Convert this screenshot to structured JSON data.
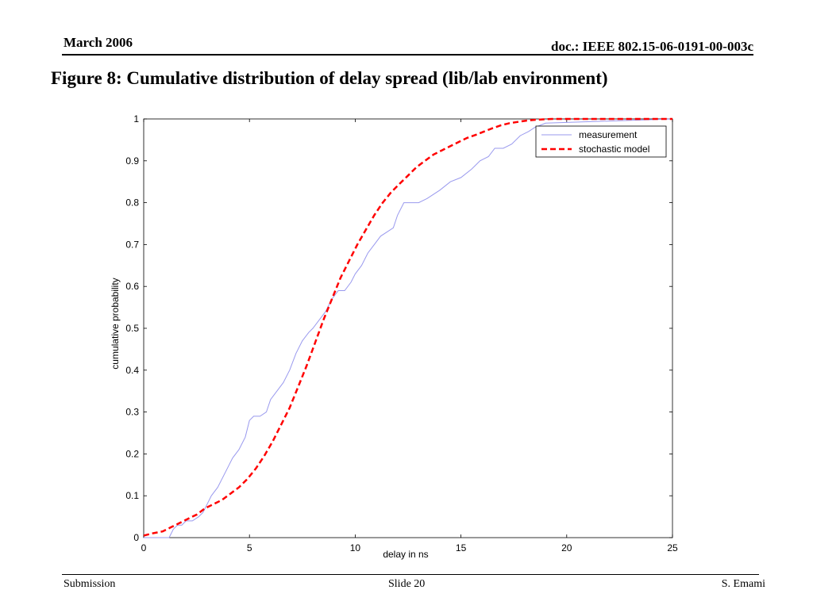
{
  "header": {
    "date": "March 2006",
    "doc_id": "doc.: IEEE 802.15-06-0191-00-003c"
  },
  "slide": {
    "title": "Figure 8: Cumulative distribution of delay spread (lib/lab environment)"
  },
  "footer": {
    "left": "Submission",
    "center": "Slide 20",
    "right": "S. Emami"
  },
  "chart_data": {
    "type": "line",
    "title": "",
    "xlabel": "delay in ns",
    "ylabel": "cumulative probability",
    "xlim": [
      0,
      25
    ],
    "ylim": [
      0,
      1
    ],
    "x_ticks": [
      0,
      5,
      10,
      15,
      20,
      25
    ],
    "y_ticks": [
      0,
      0.1,
      0.2,
      0.3,
      0.4,
      0.5,
      0.6,
      0.7,
      0.8,
      0.9,
      1
    ],
    "grid": false,
    "legend_position": "top-right",
    "series": [
      {
        "name": "measurement",
        "color": "#9999ee",
        "style": "solid",
        "x": [
          0,
          1.2,
          1.4,
          1.6,
          1.8,
          2.0,
          2.3,
          2.6,
          2.8,
          3.0,
          3.2,
          3.5,
          3.8,
          4.0,
          4.2,
          4.5,
          4.8,
          5.0,
          5.2,
          5.5,
          5.8,
          6.0,
          6.3,
          6.6,
          6.9,
          7.2,
          7.5,
          7.8,
          8.0,
          8.3,
          8.6,
          8.9,
          9.2,
          9.5,
          9.8,
          10.0,
          10.3,
          10.6,
          10.9,
          11.2,
          11.5,
          11.8,
          12.0,
          12.3,
          12.6,
          12.8,
          13.0,
          13.4,
          14.0,
          14.5,
          15.0,
          15.5,
          15.9,
          16.3,
          16.6,
          17.0,
          17.4,
          17.8,
          18.2,
          18.5,
          19.0,
          25.0
        ],
        "y": [
          0,
          0,
          0.02,
          0.03,
          0.03,
          0.04,
          0.04,
          0.05,
          0.06,
          0.08,
          0.1,
          0.12,
          0.15,
          0.17,
          0.19,
          0.21,
          0.24,
          0.28,
          0.29,
          0.29,
          0.3,
          0.33,
          0.35,
          0.37,
          0.4,
          0.44,
          0.47,
          0.49,
          0.5,
          0.52,
          0.54,
          0.57,
          0.59,
          0.59,
          0.61,
          0.63,
          0.65,
          0.68,
          0.7,
          0.72,
          0.73,
          0.74,
          0.77,
          0.8,
          0.8,
          0.8,
          0.8,
          0.81,
          0.83,
          0.85,
          0.86,
          0.88,
          0.9,
          0.91,
          0.93,
          0.93,
          0.94,
          0.96,
          0.97,
          0.98,
          0.99,
          1.0
        ]
      },
      {
        "name": "stochastic model",
        "color": "#ff0000",
        "style": "dashed",
        "x": [
          0,
          0.4,
          0.9,
          1.3,
          1.7,
          2.1,
          2.5,
          2.9,
          3.3,
          3.7,
          4.1,
          4.5,
          4.9,
          5.3,
          5.7,
          6.1,
          6.5,
          6.9,
          7.3,
          7.7,
          8.1,
          8.5,
          8.9,
          9.3,
          9.7,
          10.1,
          10.5,
          10.9,
          11.3,
          11.7,
          12.1,
          12.5,
          12.9,
          13.3,
          13.7,
          14.1,
          14.5,
          14.9,
          15.3,
          15.7,
          16.1,
          16.5,
          16.9,
          17.3,
          17.7,
          18.1,
          18.5,
          18.9,
          19.3,
          20,
          21,
          22,
          25
        ],
        "y": [
          0.005,
          0.01,
          0.015,
          0.025,
          0.035,
          0.045,
          0.055,
          0.07,
          0.08,
          0.09,
          0.105,
          0.12,
          0.14,
          0.165,
          0.195,
          0.23,
          0.27,
          0.31,
          0.36,
          0.41,
          0.465,
          0.52,
          0.57,
          0.62,
          0.66,
          0.7,
          0.735,
          0.77,
          0.8,
          0.825,
          0.845,
          0.865,
          0.885,
          0.9,
          0.915,
          0.925,
          0.935,
          0.945,
          0.955,
          0.962,
          0.97,
          0.978,
          0.985,
          0.99,
          0.993,
          0.996,
          0.998,
          0.999,
          1.0,
          1.0,
          1.0,
          1.0,
          1.0
        ]
      }
    ]
  }
}
